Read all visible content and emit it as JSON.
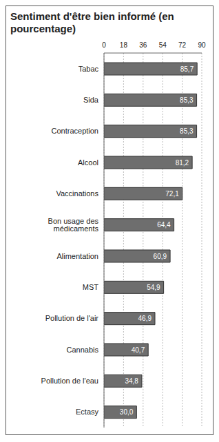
{
  "chart_data": {
    "type": "bar",
    "title": "Sentiment d'être bien informé (en pourcentage)",
    "orientation": "horizontal",
    "categories": [
      "Tabac",
      "Sida",
      "Contraception",
      "Alcool",
      "Vaccinations",
      "Bon usage des médicaments",
      "Alimentation",
      "MST",
      "Pollution de l'air",
      "Cannabis",
      "Pollution de l'eau",
      "Ectasy"
    ],
    "values": [
      85.7,
      85.3,
      85.3,
      81.2,
      72.1,
      64.4,
      60.9,
      54.9,
      46.9,
      40.7,
      34.8,
      30.0
    ],
    "value_labels": [
      "85,7",
      "85,3",
      "85,3",
      "81,2",
      "72,1",
      "64,4",
      "60,9",
      "54,9",
      "46,9",
      "40,7",
      "34,8",
      "30,0"
    ],
    "data_labels": true,
    "color": "#6e6e6e",
    "xlim": [
      0,
      90
    ],
    "xticks": [
      0,
      18,
      36,
      54,
      72,
      90
    ],
    "grid": true
  }
}
